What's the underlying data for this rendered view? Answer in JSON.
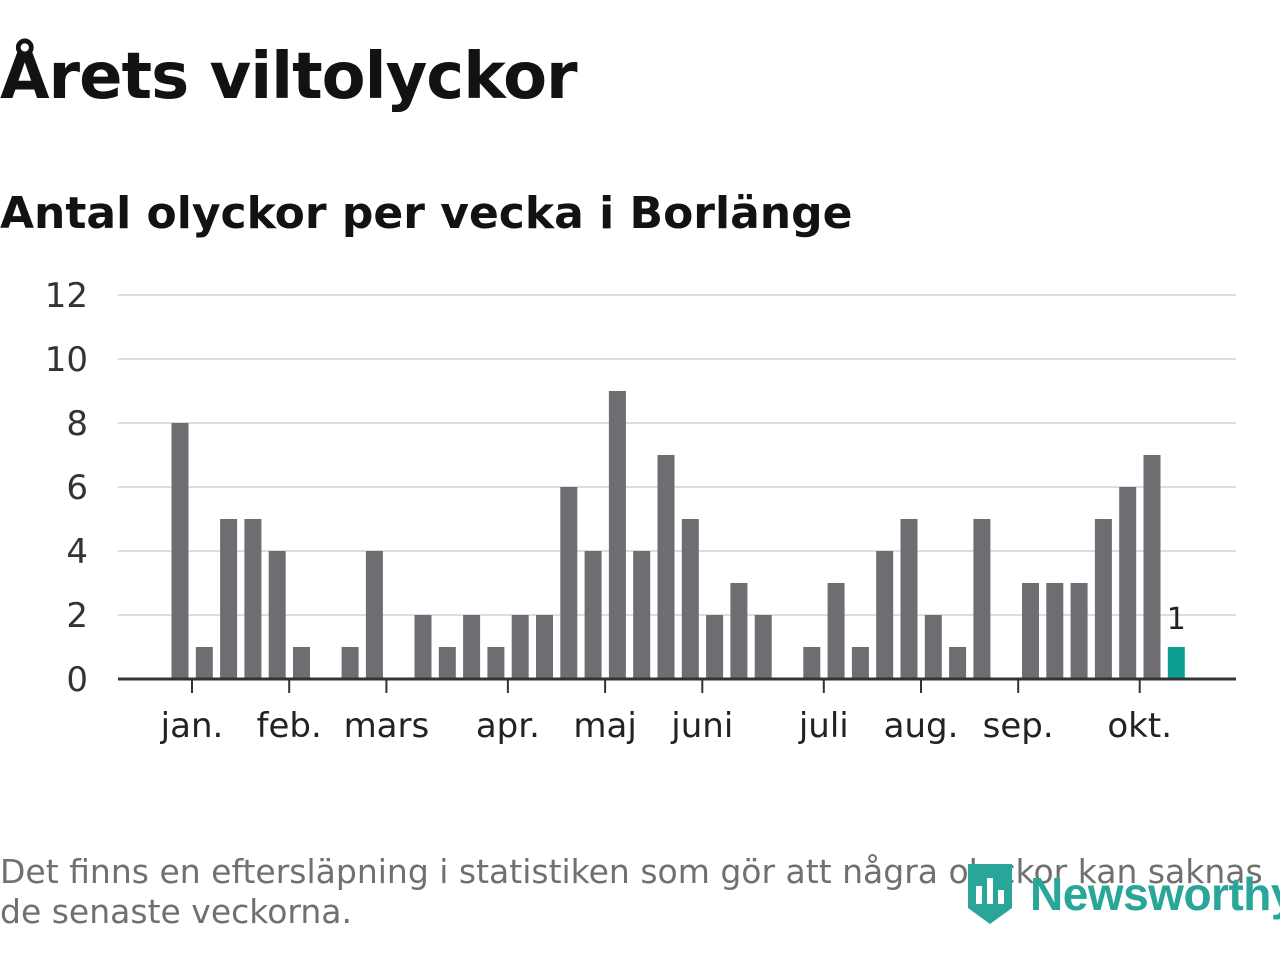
{
  "header": {
    "title": "Årets viltolyckor",
    "subtitle": "Antal olyckor per vecka i Borlänge"
  },
  "footer": {
    "note": "Det finns en eftersläpning i statistiken som gör att några olyckor kan saknas de senaste veckorna.",
    "brand": "Newsworthy"
  },
  "colors": {
    "bar": "#6e6d72",
    "highlight": "#0e9f92",
    "grid": "#dddddd",
    "axis": "#333333",
    "brand": "#2aa59a"
  },
  "chart_data": {
    "type": "bar",
    "title": "Antal olyckor per vecka i Borlänge",
    "xlabel": "",
    "ylabel": "",
    "ylim": [
      0,
      12
    ],
    "y_ticks": [
      0,
      2,
      4,
      6,
      8,
      10,
      12
    ],
    "grid": true,
    "weeks": [
      1,
      2,
      3,
      4,
      5,
      6,
      7,
      8,
      9,
      10,
      11,
      12,
      13,
      14,
      15,
      16,
      17,
      18,
      19,
      20,
      21,
      22,
      23,
      24,
      25,
      26,
      27,
      28,
      29,
      30,
      31,
      32,
      33,
      34,
      35,
      36,
      37,
      38,
      39,
      40,
      41,
      42
    ],
    "values": [
      8,
      1,
      5,
      5,
      4,
      1,
      0,
      1,
      4,
      0,
      2,
      1,
      2,
      1,
      2,
      2,
      6,
      4,
      9,
      4,
      7,
      5,
      2,
      3,
      2,
      0,
      1,
      3,
      1,
      4,
      5,
      2,
      1,
      5,
      0,
      3,
      3,
      3,
      5,
      6,
      7,
      1
    ],
    "highlight_index": 41,
    "highlight_label": "1",
    "month_labels": [
      {
        "label": "jan.",
        "week": 1.5
      },
      {
        "label": "feb.",
        "week": 5.5
      },
      {
        "label": "mars",
        "week": 9.5
      },
      {
        "label": "apr.",
        "week": 14.5
      },
      {
        "label": "maj",
        "week": 18.5
      },
      {
        "label": "juni",
        "week": 22.5
      },
      {
        "label": "juli",
        "week": 27.5
      },
      {
        "label": "aug.",
        "week": 31.5
      },
      {
        "label": "sep.",
        "week": 35.5
      },
      {
        "label": "okt.",
        "week": 40.5
      }
    ]
  }
}
